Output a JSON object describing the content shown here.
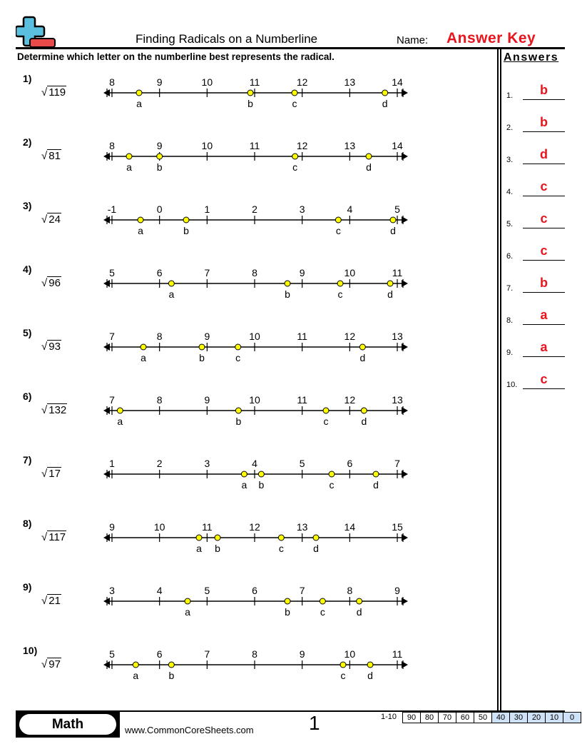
{
  "header": {
    "title": "Finding Radicals on a Numberline",
    "name_label": "Name:",
    "name_value": "Answer Key",
    "instructions": "Determine which letter on the numberline best represents the radical."
  },
  "colors": {
    "accent_red": "#e8141e",
    "point_fill": "#ffff00",
    "logo_blue": "#5bbfe0",
    "logo_red": "#e84a4a",
    "score_highlight": "#cfe2f8"
  },
  "problems": [
    {
      "number": "1)",
      "radicand": "119",
      "ticks": [
        "8",
        "9",
        "10",
        "11",
        "12",
        "13",
        "14"
      ],
      "start": 8,
      "points": [
        {
          "label": "a",
          "value": 8.57
        },
        {
          "label": "b",
          "value": 10.91
        },
        {
          "label": "c",
          "value": 11.84
        },
        {
          "label": "d",
          "value": 13.74
        }
      ]
    },
    {
      "number": "2)",
      "radicand": "81",
      "ticks": [
        "8",
        "9",
        "10",
        "11",
        "12",
        "13",
        "14"
      ],
      "start": 8,
      "points": [
        {
          "label": "a",
          "value": 8.36
        },
        {
          "label": "b",
          "value": 9.0
        },
        {
          "label": "c",
          "value": 11.85
        },
        {
          "label": "d",
          "value": 13.4
        }
      ]
    },
    {
      "number": "3)",
      "radicand": "24",
      "ticks": [
        "-1",
        "0",
        "1",
        "2",
        "3",
        "4",
        "5"
      ],
      "start": -1,
      "points": [
        {
          "label": "a",
          "value": -0.4
        },
        {
          "label": "b",
          "value": 0.56
        },
        {
          "label": "c",
          "value": 3.76
        },
        {
          "label": "d",
          "value": 4.91
        }
      ]
    },
    {
      "number": "4)",
      "radicand": "96",
      "ticks": [
        "5",
        "6",
        "7",
        "8",
        "9",
        "10",
        "11"
      ],
      "start": 5,
      "points": [
        {
          "label": "a",
          "value": 6.25
        },
        {
          "label": "b",
          "value": 8.69
        },
        {
          "label": "c",
          "value": 9.8
        },
        {
          "label": "d",
          "value": 10.85
        }
      ]
    },
    {
      "number": "5)",
      "radicand": "93",
      "ticks": [
        "7",
        "8",
        "9",
        "10",
        "11",
        "12",
        "13"
      ],
      "start": 7,
      "points": [
        {
          "label": "a",
          "value": 7.66
        },
        {
          "label": "b",
          "value": 8.89
        },
        {
          "label": "c",
          "value": 9.65
        },
        {
          "label": "d",
          "value": 12.27
        }
      ]
    },
    {
      "number": "6)",
      "radicand": "132",
      "ticks": [
        "7",
        "8",
        "9",
        "10",
        "11",
        "12",
        "13"
      ],
      "start": 7,
      "points": [
        {
          "label": "a",
          "value": 7.17
        },
        {
          "label": "b",
          "value": 9.66
        },
        {
          "label": "c",
          "value": 11.5
        },
        {
          "label": "d",
          "value": 12.3
        }
      ]
    },
    {
      "number": "7)",
      "radicand": "17",
      "ticks": [
        "1",
        "2",
        "3",
        "4",
        "5",
        "6",
        "7"
      ],
      "start": 1,
      "points": [
        {
          "label": "a",
          "value": 3.78
        },
        {
          "label": "b",
          "value": 4.14
        },
        {
          "label": "c",
          "value": 5.62
        },
        {
          "label": "d",
          "value": 6.55
        }
      ]
    },
    {
      "number": "8)",
      "radicand": "117",
      "ticks": [
        "9",
        "10",
        "11",
        "12",
        "13",
        "14",
        "15"
      ],
      "start": 9,
      "points": [
        {
          "label": "a",
          "value": 10.83
        },
        {
          "label": "b",
          "value": 11.22
        },
        {
          "label": "c",
          "value": 12.56
        },
        {
          "label": "d",
          "value": 13.29
        }
      ]
    },
    {
      "number": "9)",
      "radicand": "21",
      "ticks": [
        "3",
        "4",
        "5",
        "6",
        "7",
        "8",
        "9"
      ],
      "start": 3,
      "points": [
        {
          "label": "a",
          "value": 4.59
        },
        {
          "label": "b",
          "value": 6.69
        },
        {
          "label": "c",
          "value": 7.43
        },
        {
          "label": "d",
          "value": 8.2
        }
      ]
    },
    {
      "number": "10)",
      "radicand": "97",
      "ticks": [
        "5",
        "6",
        "7",
        "8",
        "9",
        "10",
        "11"
      ],
      "start": 5,
      "points": [
        {
          "label": "a",
          "value": 5.5
        },
        {
          "label": "b",
          "value": 6.25
        },
        {
          "label": "c",
          "value": 9.86
        },
        {
          "label": "d",
          "value": 10.43
        }
      ]
    }
  ],
  "answers": {
    "title": "Answers",
    "items": [
      {
        "num": "1.",
        "value": "b"
      },
      {
        "num": "2.",
        "value": "b"
      },
      {
        "num": "3.",
        "value": "d"
      },
      {
        "num": "4.",
        "value": "c"
      },
      {
        "num": "5.",
        "value": "c"
      },
      {
        "num": "6.",
        "value": "c"
      },
      {
        "num": "7.",
        "value": "b"
      },
      {
        "num": "8.",
        "value": "a"
      },
      {
        "num": "9.",
        "value": "a"
      },
      {
        "num": "10.",
        "value": "c"
      }
    ]
  },
  "footer": {
    "subject": "Math",
    "website": "www.CommonCoreSheets.com",
    "page_number": "1",
    "score_label": "1-10",
    "scores": [
      "90",
      "80",
      "70",
      "60",
      "50",
      "40",
      "30",
      "20",
      "10",
      "0"
    ],
    "highlighted_from": 5
  }
}
